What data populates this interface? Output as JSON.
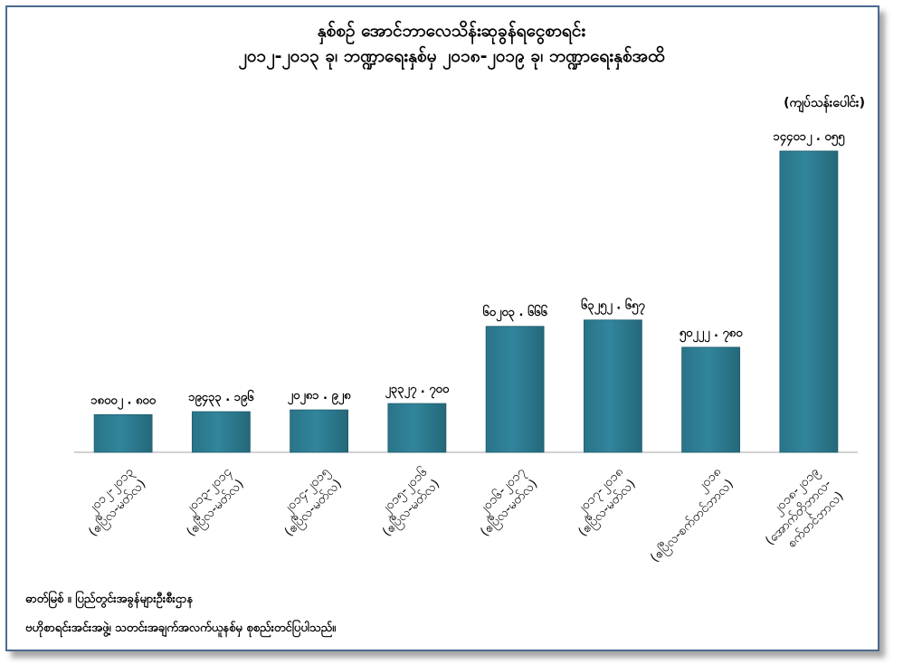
{
  "chart_data": {
    "type": "bar",
    "title": "နှစ်စဉ် အောင်ဘာလေသိန်းဆုခွန်ရငွေစာရင်း",
    "subtitle": "၂၀၁၂-၂၀၁၃ ခု၊ ဘဏ္ဍာရေးနှစ်မှ ၂၀၁၈-၂၀၁၉ ခု၊ ဘဏ္ဍာရေးနှစ်အထိ",
    "unit": "(ကျပ်သန်းပေါင်း)",
    "categories": [
      [
        "၂၀၁၂-၂၀၁၃",
        "(ဧပြီလ-မတ်လ)"
      ],
      [
        "၂၀၁၃-၂၀၁၄",
        "(ဧပြီလ-မတ်လ)"
      ],
      [
        "၂၀၁၄-၂၀၁၅",
        "(ဧပြီလ-မတ်လ)"
      ],
      [
        "၂၀၁၅-၂၀၁၆",
        "(ဧပြီလ-မတ်လ)"
      ],
      [
        "၂၀၁၆-၂၀၁၇",
        "(ဧပြီလ-မတ်လ)"
      ],
      [
        "၂၀၁၇-၂၀၁၈",
        "(ဧပြီလ-မတ်လ)"
      ],
      [
        "၂၀၁၈",
        "(ဧပြီလ-စက်တင်ဘာလ)"
      ],
      [
        "၂၀၁၈-၂၀၁၉",
        "(အောက်တိုဘာလ-",
        "စက်တင်ဘာလ)"
      ]
    ],
    "values": [
      18002.8,
      19433.196,
      20281.928,
      23327.7,
      60203.666,
      63252.657,
      50222.78,
      144012.055
    ],
    "value_labels": [
      "၁၈၀၀၂ . ၈၀၀",
      "၁၉၄၃၃ . ၁၉၆",
      "၂၀၂၈၁ . ၉၂၈",
      "၂၃၃၂၇ . ၇၀၀",
      "၆၀၂၀၃ . ၆၆၆",
      "၆၃၂၅၂ . ၆၅၇",
      "၅၀၂၂၂ . ၇၈၀",
      "၁၄၄၀၁၂ . ၀၅၅"
    ],
    "ylim": [
      0,
      160000
    ],
    "bar_color": "#31859c",
    "grid": false,
    "legend": "none"
  },
  "source": {
    "line1": "ဓာတ်မြစ် ။ ပြည်တွင်းအခွန်များဦးစီးဌာန",
    "line2": "ဗဟိုစာရင်းအင်းအဖွဲ့၊ သတင်းအချက်အလက်ယူနစ်မှ စုစည်းတင်ပြပါသည်။"
  }
}
